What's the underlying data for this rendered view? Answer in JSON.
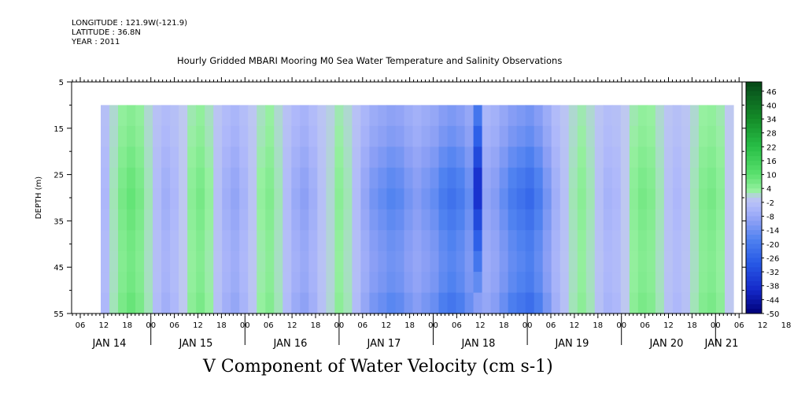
{
  "meta": {
    "longitude": "LONGITUDE : 121.9W(-121.9)",
    "latitude": "LATITUDE : 36.8N",
    "year": "YEAR : 2011"
  },
  "chart_data": {
    "type": "heatmap",
    "title": "Hourly Gridded MBARI Mooring M0 Sea Water Temperature and Salinity Observations",
    "xlabel": "V Component of Water Velocity (cm s-1)",
    "ylabel": "DEPTH (m)",
    "ylim": [
      5,
      55
    ],
    "y_reversed": true,
    "y_ticks": [
      "5",
      "15",
      "25",
      "35",
      "45",
      "55"
    ],
    "x_hour_ticks": [
      "06",
      "12",
      "18",
      "00",
      "06",
      "12",
      "18",
      "00",
      "06",
      "12",
      "18",
      "00",
      "06",
      "12",
      "18",
      "00",
      "06",
      "12",
      "18",
      "00",
      "06",
      "12",
      "18",
      "00",
      "06",
      "12",
      "18",
      "00",
      "06",
      "12",
      "18",
      "00"
    ],
    "x_day_labels": [
      "JAN 14",
      "JAN 15",
      "JAN 16",
      "JAN 17",
      "JAN 18",
      "JAN 19",
      "JAN 20",
      "JAN 21"
    ],
    "colorbar_labels": [
      "46",
      "40",
      "34",
      "28",
      "22",
      "16",
      "10",
      "4",
      "-2",
      "-8",
      "-14",
      "-20",
      "-26",
      "-32",
      "-38",
      "-44",
      "-50"
    ],
    "colorbar_range": [
      -50,
      50
    ],
    "data_depth_range": [
      10,
      55
    ],
    "column_values": [
      -4,
      2,
      6,
      8,
      6,
      2,
      -3,
      -6,
      -4,
      0,
      4,
      6,
      3,
      -2,
      -6,
      -8,
      -5,
      -1,
      3,
      5,
      2,
      -3,
      -7,
      -9,
      -6,
      -2,
      1,
      4,
      2,
      -3,
      -8,
      -12,
      -14,
      -16,
      -15,
      -12,
      -10,
      -12,
      -14,
      -18,
      -20,
      -18,
      -14,
      -10,
      -8,
      -10,
      -14,
      -18,
      -20,
      -22,
      -18,
      -12,
      -6,
      -2,
      2,
      4,
      2,
      -2,
      -5,
      -4,
      0,
      4,
      6,
      5,
      2,
      -2,
      -4,
      -2,
      2,
      5,
      6,
      4,
      0
    ],
    "depth_profile": [
      0.6,
      0.7,
      0.85,
      1.0,
      1.1,
      1.0,
      0.9,
      0.85,
      0.9,
      1.05
    ],
    "deep_spot": {
      "col": 43,
      "depth": 28,
      "value": -40
    }
  }
}
